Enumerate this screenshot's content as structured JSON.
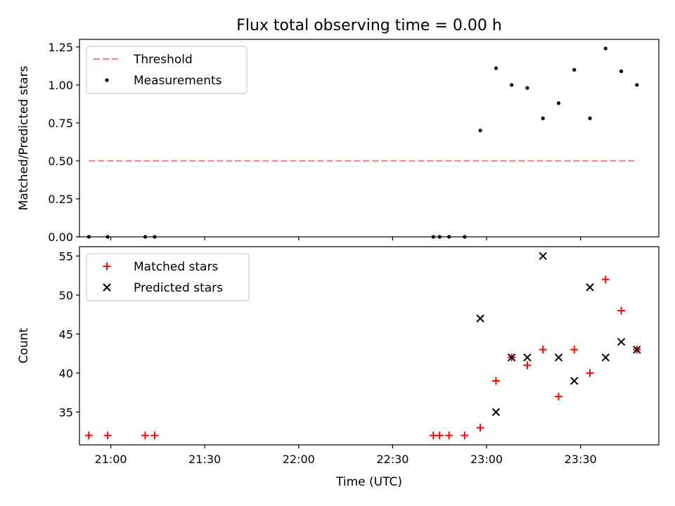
{
  "figure": {
    "title": "Flux total observing time = 0.00 h"
  },
  "chart_data": [
    {
      "type": "scatter",
      "title": "Flux total observing time = 0.00 h",
      "xlabel": "",
      "ylabel": "Matched/Predicted stars",
      "x_unit": "time (HH:MM, UTC)",
      "xlim": [
        "20:50",
        "23:55"
      ],
      "ylim": [
        0,
        1.3
      ],
      "yticks": [
        "0.00",
        "0.25",
        "0.50",
        "0.75",
        "1.00",
        "1.25"
      ],
      "legend": {
        "location": "upper left",
        "entries": [
          "Threshold",
          "Measurements"
        ]
      },
      "series": [
        {
          "name": "Threshold",
          "kind": "line",
          "style": "dashed",
          "color": "#ff7f7f",
          "x": [
            "20:53",
            "23:48"
          ],
          "y": [
            0.5,
            0.5
          ]
        },
        {
          "name": "Measurements",
          "kind": "scatter",
          "marker": "dot",
          "color": "#000000",
          "x": [
            "20:53",
            "20:59",
            "21:11",
            "21:14",
            "22:43",
            "22:45",
            "22:48",
            "22:53",
            "22:58",
            "23:03",
            "23:08",
            "23:13",
            "23:18",
            "23:23",
            "23:28",
            "23:33",
            "23:38",
            "23:43",
            "23:48"
          ],
          "y": [
            0,
            0,
            0,
            0,
            0,
            0,
            0,
            0,
            0.7,
            1.11,
            1.0,
            0.98,
            0.78,
            0.88,
            1.1,
            0.78,
            1.24,
            1.09,
            1.0
          ]
        }
      ]
    },
    {
      "type": "scatter",
      "title": "",
      "xlabel": "Time (UTC)",
      "ylabel": "Count",
      "x_unit": "time (HH:MM, UTC)",
      "xlim": [
        "20:50",
        "23:55"
      ],
      "ylim": [
        30.8,
        56.2
      ],
      "xticks": [
        "21:00",
        "21:30",
        "22:00",
        "22:30",
        "23:00",
        "23:30"
      ],
      "yticks": [
        "35",
        "40",
        "45",
        "50",
        "55"
      ],
      "legend": {
        "location": "upper left",
        "entries": [
          "Matched stars",
          "Predicted stars"
        ]
      },
      "series": [
        {
          "name": "Matched stars",
          "marker": "plus",
          "color": "#ff0000",
          "x": [
            "20:53",
            "20:59",
            "21:11",
            "21:14",
            "22:43",
            "22:45",
            "22:48",
            "22:53",
            "22:58",
            "23:03",
            "23:08",
            "23:13",
            "23:18",
            "23:23",
            "23:28",
            "23:33",
            "23:38",
            "23:43",
            "23:48"
          ],
          "y": [
            32,
            32,
            32,
            32,
            32,
            32,
            32,
            32,
            33,
            39,
            42,
            41,
            43,
            37,
            43,
            40,
            52,
            48,
            43
          ]
        },
        {
          "name": "Predicted stars",
          "marker": "x",
          "color": "#000000",
          "x": [
            "22:58",
            "23:03",
            "23:08",
            "23:13",
            "23:18",
            "23:23",
            "23:28",
            "23:33",
            "23:38",
            "23:43",
            "23:48"
          ],
          "y": [
            47,
            35,
            42,
            42,
            55,
            42,
            39,
            51,
            42,
            44,
            43
          ]
        }
      ]
    }
  ]
}
